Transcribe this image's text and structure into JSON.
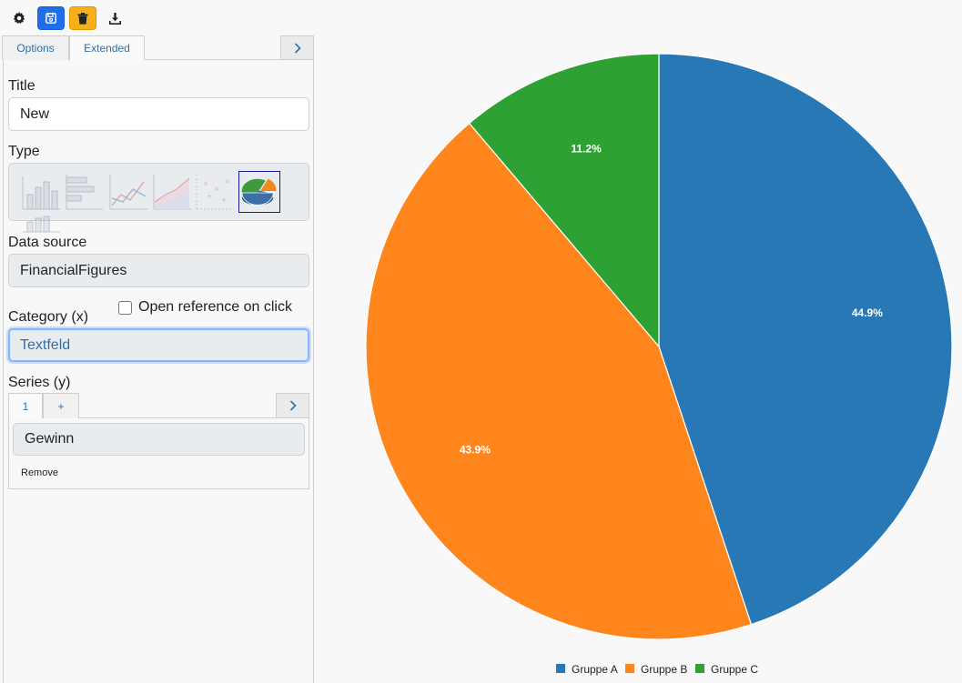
{
  "toolbar": {
    "buttons": [
      {
        "icon": "gear-icon"
      },
      {
        "icon": "save-icon",
        "color": "#1f6feb"
      },
      {
        "icon": "trash-icon",
        "color": "#f5b01a"
      },
      {
        "icon": "download-icon"
      }
    ]
  },
  "tabs": [
    {
      "label": "Options",
      "active": false
    },
    {
      "label": "Extended",
      "active": true
    }
  ],
  "form": {
    "title_label": "Title",
    "title_value": "New",
    "type_label": "Type",
    "chart_types": [
      "bar-chart-icon",
      "horizontal-bar-chart-icon",
      "line-chart-icon",
      "area-chart-icon",
      "scatter-chart-icon",
      "pie-chart-icon",
      "stacked-chart-icon"
    ],
    "selected_type": "pie-chart-icon",
    "datasource_label": "Data source",
    "datasource_value": "FinancialFigures",
    "open_reference_label": "Open reference on click",
    "open_reference_checked": false,
    "category_label": "Category (x)",
    "category_value": "Textfeld",
    "series_label": "Series (y)",
    "series_tabs": [
      "1",
      "+"
    ],
    "series_value": "Gewinn",
    "remove_label": "Remove"
  },
  "chart_data": {
    "type": "pie",
    "categories": [
      "Gruppe A",
      "Gruppe B",
      "Gruppe C"
    ],
    "values": [
      44.9,
      43.9,
      11.2
    ],
    "labels": [
      "44.9%",
      "43.9%",
      "11.2%"
    ],
    "colors": [
      "#2878b5",
      "#ff861c",
      "#2ea135"
    ],
    "legend_position": "bottom-center"
  }
}
